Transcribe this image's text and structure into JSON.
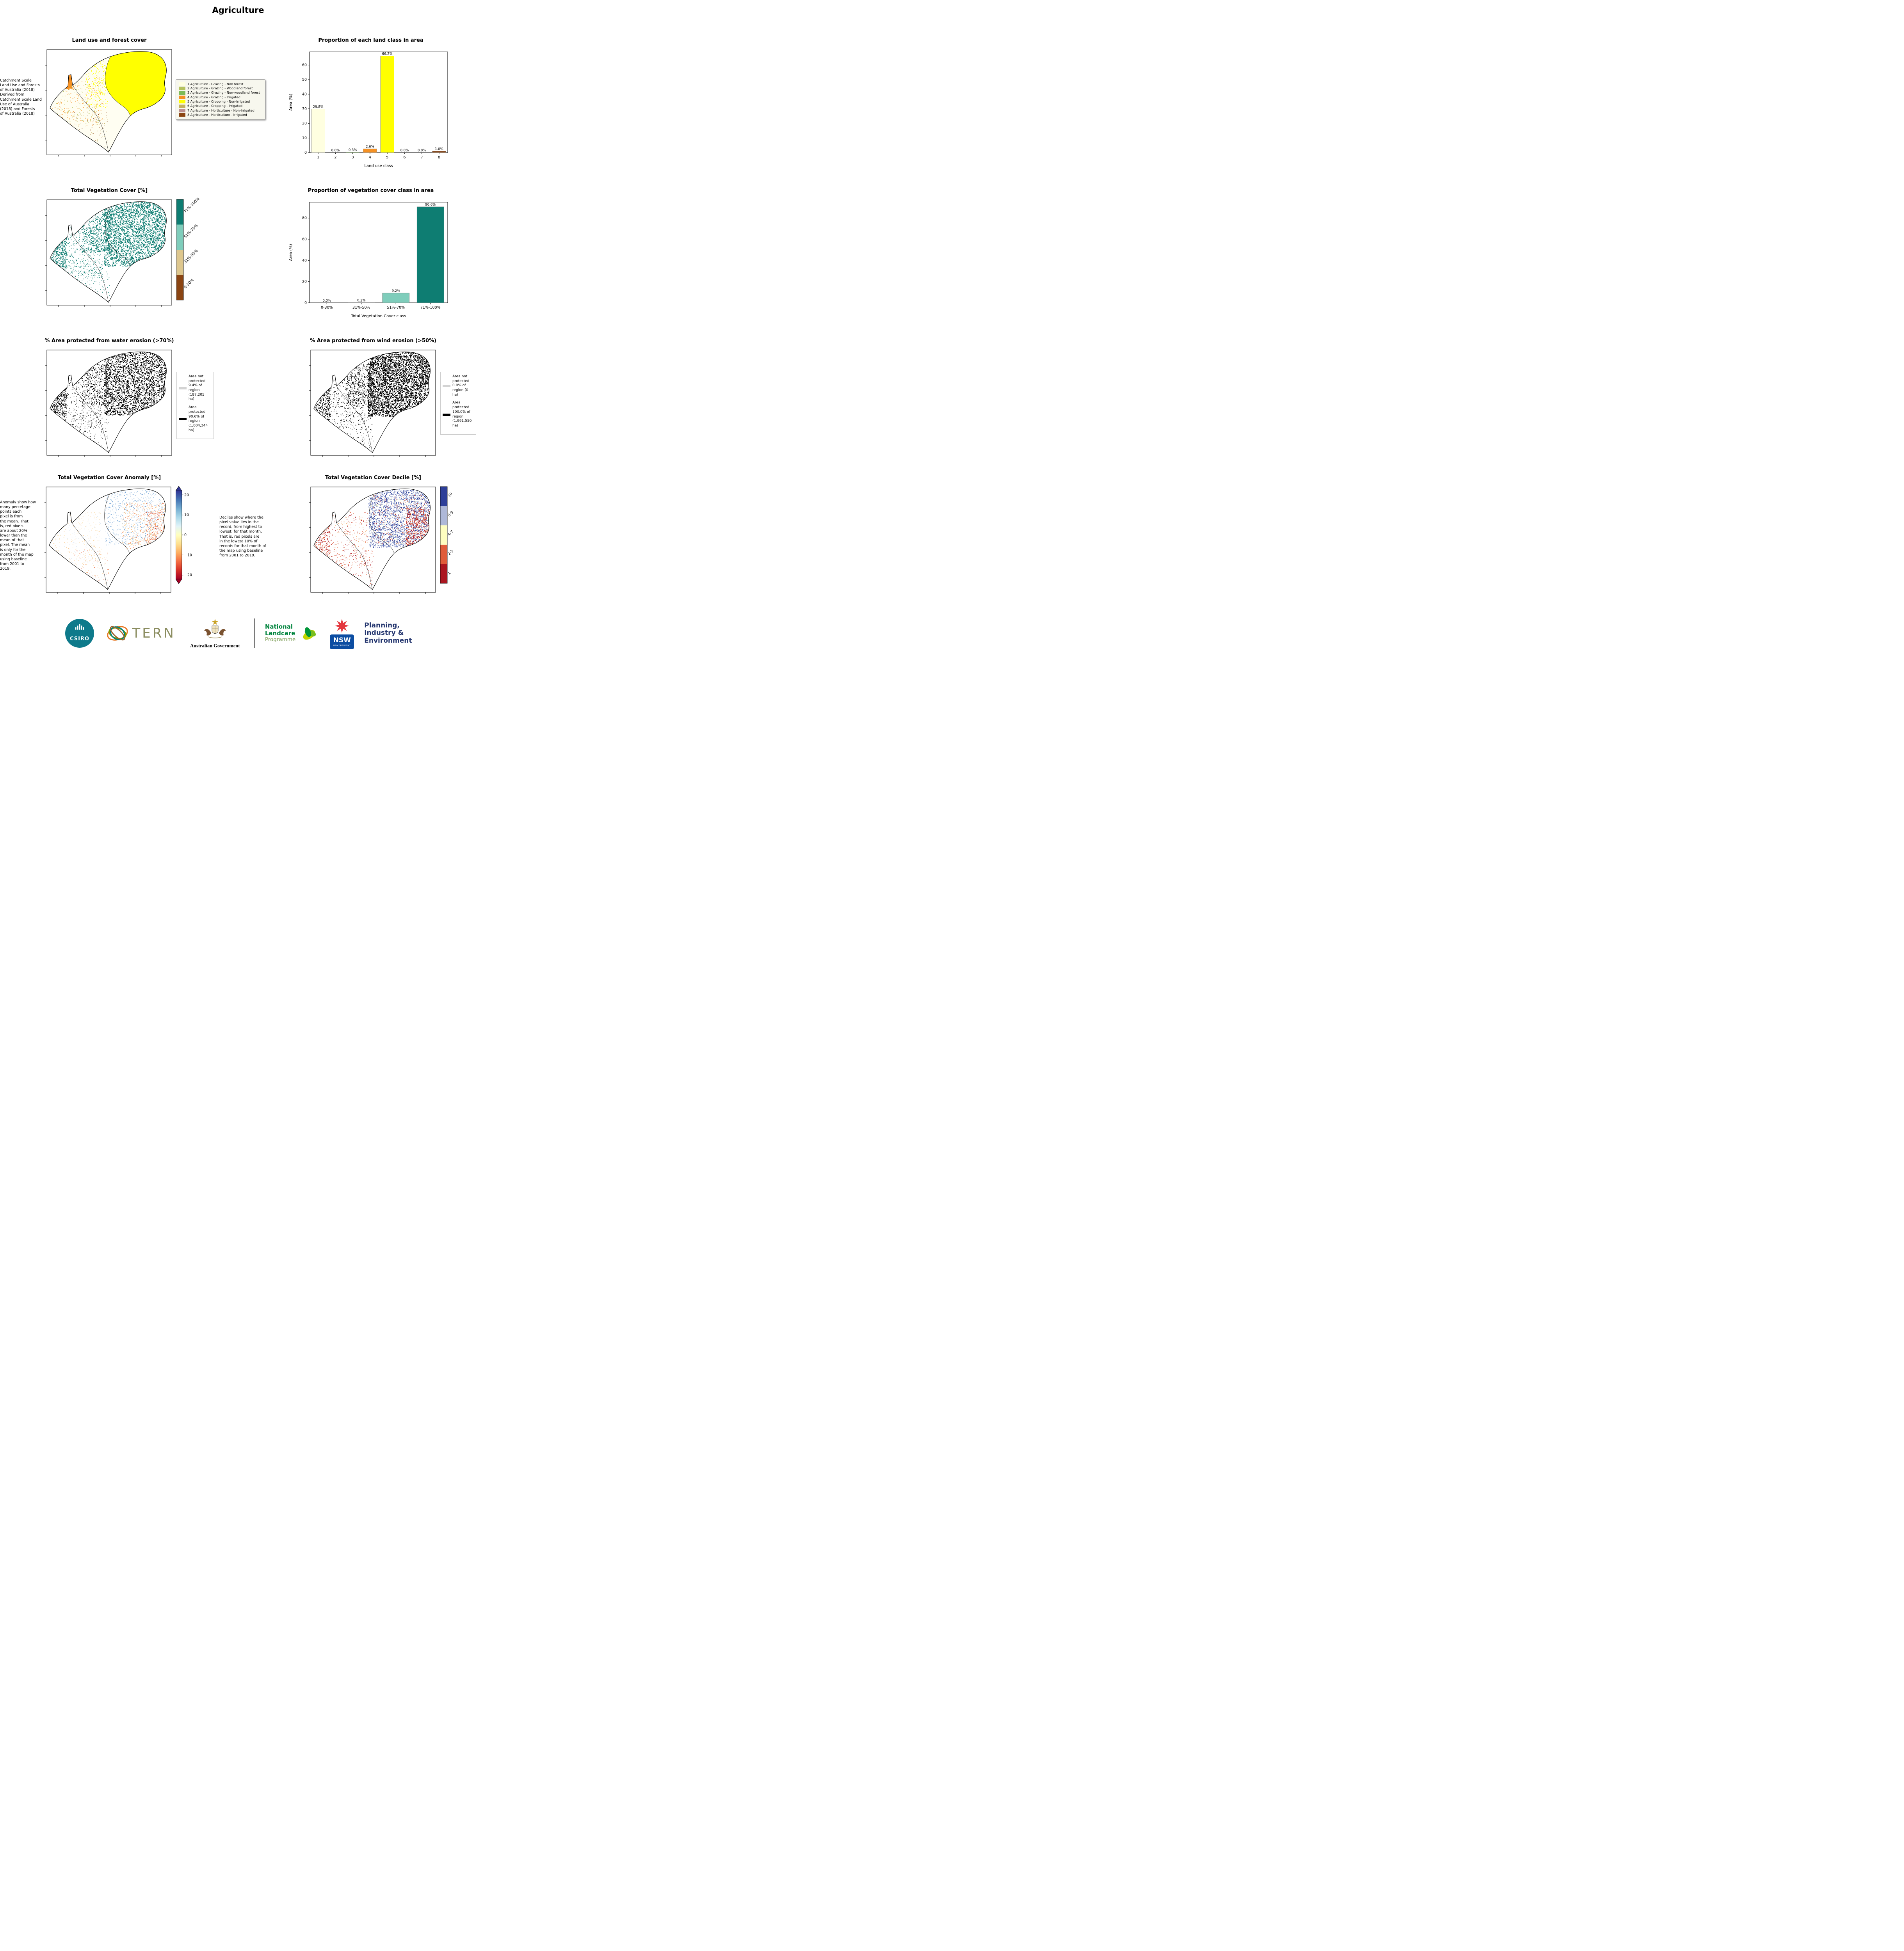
{
  "title": "Agriculture",
  "panels": {
    "landuse_map": {
      "title": "Land use and forest cover",
      "caption": " Catchment Scale\nLand Use and Forests\nof Australia (2018)\nDerived from\nCatchment Scale Land\nUse of Australia\n(2018) and Forests\nof Australia (2018)",
      "legend": [
        {
          "label": "1 Agriculture - Grazing - Non forest",
          "color": "#FFFFE0"
        },
        {
          "label": "2 Agriculture - Grazing - Woodland forest",
          "color": "#B5C25E"
        },
        {
          "label": "3 Agriculture - Grazing - Non-woodland forest",
          "color": "#7DBB57"
        },
        {
          "label": "4 Agriculture - Grazing - Irrigated",
          "color": "#F59123"
        },
        {
          "label": "5 Agriculture - Cropping - Non-irrigated",
          "color": "#FFFF00"
        },
        {
          "label": "6 Agriculture - Cropping - Irrigated",
          "color": "#C3B061"
        },
        {
          "label": "7 Agriculture - Horticulture - Non-irrigated",
          "color": "#BC8F8F"
        },
        {
          "label": "8 Agriculture - Horticulture - Irrigated",
          "color": "#8B4513"
        }
      ]
    },
    "veg_map": {
      "title": "Total Vegetation Cover [%]",
      "colorbar": {
        "labels": [
          "0-30%",
          "31%-50%",
          "51%-70%",
          "71%-100%"
        ],
        "colors": [
          "#8B4513",
          "#DEC78E",
          "#7FCDBB",
          "#0E7D72"
        ]
      }
    },
    "water_map": {
      "title": "% Area protected from water erosion (>70%)",
      "legend": [
        {
          "label": "Area not\nprotected\n9.4% of\nregion\n(187,205\nha)",
          "color": "#D3D3D3"
        },
        {
          "label": "Area\nprotected\n90.6% of\nregion\n(1,804,344\nha)",
          "color": "#000000"
        }
      ]
    },
    "wind_map": {
      "title": "% Area protected from wind erosion (>50%)",
      "legend": [
        {
          "label": "Area not\nprotected\n0.0% of\nregion (0\nha)",
          "color": "#D3D3D3"
        },
        {
          "label": "Area\nprotected\n100.0% of\nregion\n(1,991,550\nha)",
          "color": "#000000"
        }
      ]
    },
    "anomaly_map": {
      "title": "Total Vegetation Cover Anomaly [%]",
      "caption": "Anomaly show how\nmany percetage\npoints each\npixel is from\nthe mean. That\nis, red pixels\nare about 20%\nlower than the\nmean of that\npixel. The mean\nis only for the\nmonth of the map\nusing baseline\nfrom 2001 to\n2019.",
      "colorbar": {
        "ticks": [
          "20",
          "10",
          "0",
          "−10",
          "−20"
        ]
      }
    },
    "decile_map": {
      "title": "Total Vegetation Cover Decile [%]",
      "caption": "Deciles show where the\npixel value lies in the\nrecord, from highest to\nlowest, for that month.\nThat is, red pixels are\nin the lowest 10% of\nrecords for that month of\nthe map using baseline\nfrom 2001 to 2019.",
      "colorbar": {
        "labels": [
          "1",
          "2-3",
          "4-7",
          "8-9",
          "10"
        ],
        "colors": [
          "#AB1620",
          "#E05C3A",
          "#FEFEC0",
          "#AEB8D8",
          "#2D3F99"
        ]
      }
    }
  },
  "chart_data": [
    {
      "type": "bar",
      "title": "Proportion of each land class in area",
      "categories": [
        "1",
        "2",
        "3",
        "4",
        "5",
        "6",
        "7",
        "8"
      ],
      "values": [
        29.8,
        0.0,
        0.3,
        2.6,
        66.2,
        0.0,
        0.0,
        1.0
      ],
      "value_labels": [
        "29.8%",
        "0.0%",
        "0.3%",
        "2.6%",
        "66.2%",
        "0.0%",
        "0.0%",
        "1.0%"
      ],
      "colors": [
        "#FFFFE0",
        "#B5C25E",
        "#7DBB57",
        "#F59123",
        "#FFFF00",
        "#C3B061",
        "#BC8F8F",
        "#8B4513"
      ],
      "xlabel": "Land use class",
      "ylabel": "Area (%)",
      "ylim": [
        0,
        69
      ],
      "yticks": [
        0,
        10,
        20,
        30,
        40,
        50,
        60
      ]
    },
    {
      "type": "bar",
      "title": "Proportion of vegetation cover class in area",
      "categories": [
        "0-30%",
        "31%-50%",
        "51%-70%",
        "71%-100%"
      ],
      "values": [
        0.0,
        0.2,
        9.2,
        90.6
      ],
      "value_labels": [
        "0.0%",
        "0.2%",
        "9.2%",
        "90.6%"
      ],
      "colors": [
        "#8B4513",
        "#DEC78E",
        "#7FCDBB",
        "#0E7D72"
      ],
      "xlabel": "Total Vegetation Cover class",
      "ylabel": "Area (%)",
      "ylim": [
        0,
        95
      ],
      "yticks": [
        0,
        20,
        40,
        60,
        80
      ]
    }
  ],
  "footer": {
    "csiro": "CSIRO",
    "tern": "TERN",
    "aus_gov": "Australian Government",
    "landcare": [
      "National",
      "Landcare",
      "Programme"
    ],
    "nsw": "NSW",
    "nsw_sub": "GOVERNMENT",
    "planning": [
      "Planning,",
      "Industry &",
      "Environment"
    ]
  }
}
